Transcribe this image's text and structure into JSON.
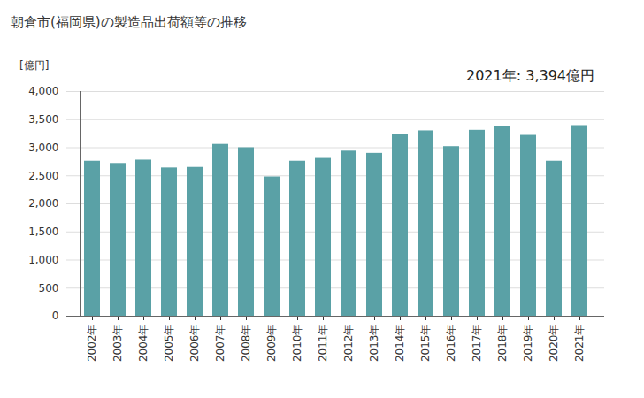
{
  "chart_data": {
    "type": "bar",
    "title": "朝倉市(福岡県)の製造品出荷額等の推移",
    "y_label": "[億円]",
    "annotation": "2021年: 3,394億円",
    "categories": [
      "2002年",
      "2003年",
      "2004年",
      "2005年",
      "2006年",
      "2007年",
      "2008年",
      "2009年",
      "2010年",
      "2011年",
      "2012年",
      "2013年",
      "2014年",
      "2015年",
      "2016年",
      "2017年",
      "2018年",
      "2019年",
      "2020年",
      "2021年"
    ],
    "values": [
      2760,
      2720,
      2780,
      2640,
      2650,
      3060,
      3000,
      2480,
      2760,
      2810,
      2940,
      2900,
      3240,
      3300,
      3020,
      3310,
      3370,
      3220,
      2760,
      3394
    ],
    "color": "#5aa1a6",
    "ylim": [
      0,
      4000
    ],
    "yticks": [
      0,
      500,
      {
        "value": 1000,
        "label": "1,000"
      },
      {
        "value": 1500,
        "label": "1,500"
      },
      {
        "value": 2000,
        "label": "2,000"
      },
      {
        "value": 2500,
        "label": "2,500"
      },
      {
        "value": 3000,
        "label": "3,000"
      },
      {
        "value": 3500,
        "label": "3,500"
      },
      {
        "value": 4000,
        "label": "4,000"
      }
    ],
    "grid": true
  }
}
